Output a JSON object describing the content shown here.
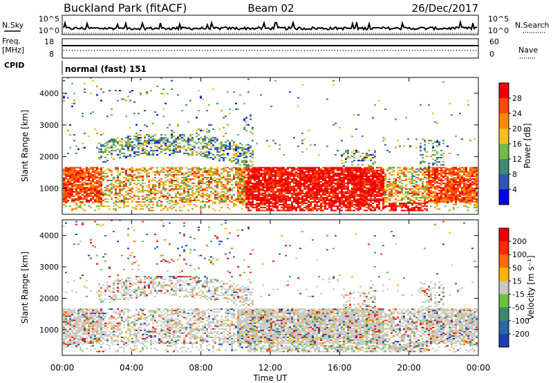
{
  "header": {
    "station": "Buckland Park (fitACF)",
    "beam": "Beam 02",
    "date": "26/Dec/2017"
  },
  "status_panel": {
    "left_label_1": "N.Sky",
    "left_label_2": "Freq.",
    "left_label_2_unit": "[MHz]",
    "left_label_3": "CPID",
    "right_label_1": "N.Search",
    "right_label_2": "Nave",
    "noise_ticks": [
      "10^5",
      "10^0"
    ],
    "freq_ticks": [
      "18",
      "8"
    ],
    "nave_ticks": [
      "60",
      "0"
    ],
    "cpid_text": "normal (fast) 151"
  },
  "chart_data": [
    {
      "type": "heatmap",
      "ylabel": "Slant Range [km]",
      "x_ticks": [
        "00:00",
        "04:00",
        "08:00",
        "12:00",
        "16:00",
        "20:00",
        "00:00"
      ],
      "xlim_hours": [
        0,
        24
      ],
      "y_ticks": [
        1000,
        2000,
        3000,
        4000
      ],
      "ylim": [
        180,
        4500
      ],
      "colorbar": {
        "label": "Power [dB]",
        "ticks": [
          "4",
          "8",
          "12",
          "16",
          "20",
          "24",
          "28"
        ],
        "colors": [
          "#0000ee",
          "#2d55b4",
          "#3e8a6e",
          "#72b84a",
          "#f0c020",
          "#ff8a00",
          "#ff4a00",
          "#ee0000"
        ]
      }
    },
    {
      "type": "heatmap",
      "ylabel": "Slant Range [km]",
      "xlabel": "Time UT",
      "x_ticks": [
        "00:00",
        "04:00",
        "08:00",
        "12:00",
        "16:00",
        "20:00",
        "00:00"
      ],
      "xlim_hours": [
        0,
        24
      ],
      "y_ticks": [
        1000,
        2000,
        3000,
        4000
      ],
      "ylim": [
        180,
        4500
      ],
      "colorbar": {
        "label": "Velocity [m s⁻¹]",
        "ticks": [
          "200",
          "100",
          "50",
          "15",
          "-15",
          "-50",
          "-100",
          "-200"
        ],
        "colors": [
          "#1e3cb4",
          "#2a6aa0",
          "#3a8a6a",
          "#6ac040",
          "#c8c8c0",
          "#ffb400",
          "#ff6a00",
          "#ff2a00",
          "#ee0000"
        ]
      }
    }
  ]
}
